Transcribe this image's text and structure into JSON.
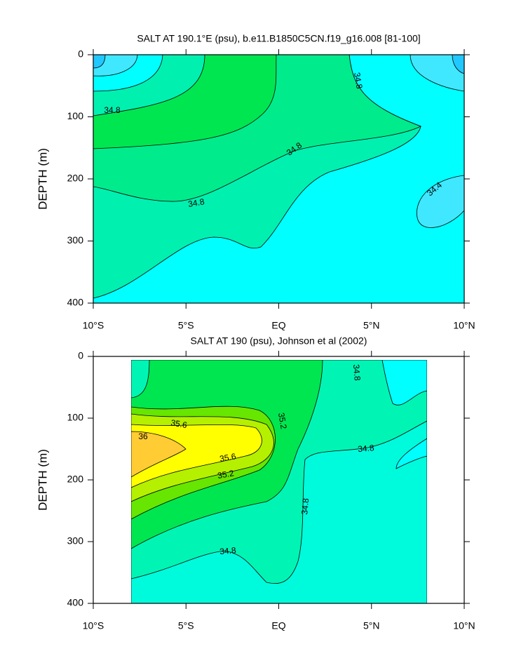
{
  "chart_data": [
    {
      "type": "contour",
      "title": "SALT AT 190.1°E (psu), b.e11.B1850C5CN.f19_g16.008 [81-100]",
      "ylabel": "DEPTH (m)",
      "xlim": [
        -10,
        10
      ],
      "xticks": [
        {
          "value": -10,
          "label": "10°S"
        },
        {
          "value": -5,
          "label": "5°S"
        },
        {
          "value": 0,
          "label": "EQ"
        },
        {
          "value": 5,
          "label": "5°N"
        },
        {
          "value": 10,
          "label": "10°N"
        }
      ],
      "ylim": [
        0,
        400
      ],
      "y_inverted": true,
      "yticks": [
        0,
        100,
        200,
        300,
        400
      ],
      "contour_labels": [
        34.8,
        34.8,
        34.8,
        34.8,
        34.4
      ]
    },
    {
      "type": "contour",
      "title": "SALT AT 190 (psu), Johnson et al (2002)",
      "ylabel": "DEPTH (m)",
      "xlim": [
        -10,
        10
      ],
      "xticks": [
        {
          "value": -10,
          "label": "10°S"
        },
        {
          "value": -5,
          "label": "5°S"
        },
        {
          "value": 0,
          "label": "EQ"
        },
        {
          "value": 5,
          "label": "5°N"
        },
        {
          "value": 10,
          "label": "10°N"
        }
      ],
      "ylim": [
        0,
        400
      ],
      "y_inverted": true,
      "yticks": [
        0,
        100,
        200,
        300,
        400
      ],
      "contour_labels": [
        34.8,
        35.2,
        35.6,
        36,
        35.6,
        35.2,
        34.8,
        34.8,
        34.8
      ]
    }
  ]
}
